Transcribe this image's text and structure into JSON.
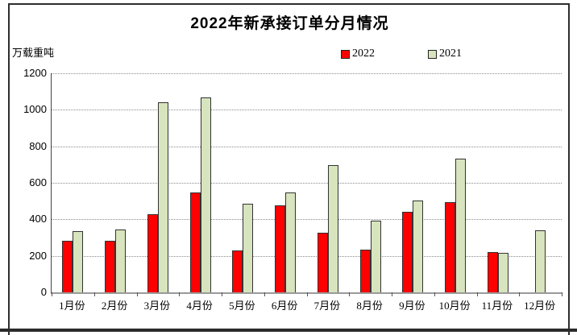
{
  "chart_data": {
    "type": "bar",
    "title": "2022年新承接订单分月情况",
    "unit_label": "万载重吨",
    "categories": [
      "1月份",
      "2月份",
      "3月份",
      "4月份",
      "5月份",
      "6月份",
      "7月份",
      "8月份",
      "9月份",
      "10月份",
      "11月份",
      "12月份"
    ],
    "series": [
      {
        "name": "2022",
        "color": "#ff0000",
        "values": [
          283,
          282,
          430,
          548,
          228,
          476,
          326,
          233,
          441,
          496,
          220,
          null
        ]
      },
      {
        "name": "2021",
        "color": "#d7e4bd",
        "values": [
          337,
          342,
          1040,
          1067,
          487,
          549,
          699,
          392,
          503,
          733,
          217,
          340
        ]
      }
    ],
    "y_ticks": [
      0,
      200,
      400,
      600,
      800,
      1000,
      1200
    ],
    "ylim": [
      0,
      1200
    ],
    "xlabel": "",
    "ylabel": "万载重吨",
    "grid": "horizontal-dotted",
    "legend_position": "top-right"
  },
  "frame": {
    "border_color": "#2e2e2e",
    "divider_color": "#2b2b2b"
  }
}
